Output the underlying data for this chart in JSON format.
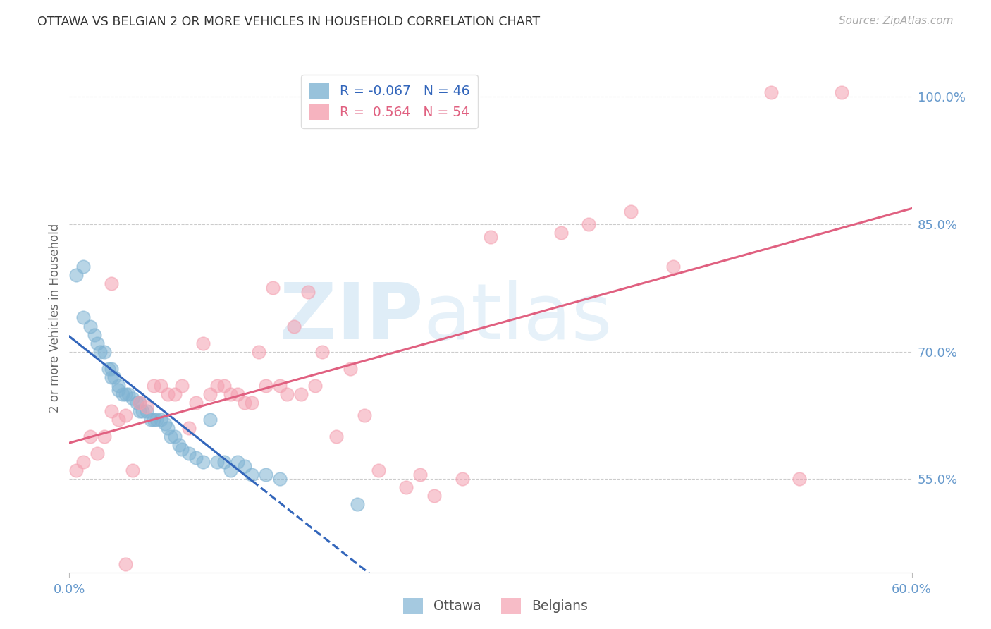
{
  "title": "OTTAWA VS BELGIAN 2 OR MORE VEHICLES IN HOUSEHOLD CORRELATION CHART",
  "source": "Source: ZipAtlas.com",
  "ylabel": "2 or more Vehicles in Household",
  "watermark": "ZIPatlas",
  "ottawa": {
    "color": "#7fb3d3",
    "line_color": "#3366bb",
    "R": -0.067,
    "N": 46,
    "x": [
      0.5,
      1.0,
      1.5,
      1.8,
      2.0,
      2.2,
      2.5,
      2.8,
      3.0,
      3.0,
      3.2,
      3.5,
      3.5,
      3.8,
      4.0,
      4.2,
      4.5,
      4.8,
      5.0,
      5.0,
      5.2,
      5.5,
      5.8,
      6.0,
      6.2,
      6.5,
      6.8,
      7.0,
      7.2,
      7.5,
      7.8,
      8.0,
      8.5,
      9.0,
      9.5,
      10.0,
      10.5,
      11.0,
      11.5,
      12.0,
      12.5,
      13.0,
      14.0,
      15.0,
      1.0,
      20.5
    ],
    "y": [
      79.0,
      74.0,
      73.0,
      72.0,
      71.0,
      70.0,
      70.0,
      68.0,
      68.0,
      67.0,
      67.0,
      66.0,
      65.5,
      65.0,
      65.0,
      65.0,
      64.5,
      64.0,
      64.0,
      63.0,
      63.0,
      63.0,
      62.0,
      62.0,
      62.0,
      62.0,
      61.5,
      61.0,
      60.0,
      60.0,
      59.0,
      58.5,
      58.0,
      57.5,
      57.0,
      62.0,
      57.0,
      57.0,
      56.0,
      57.0,
      56.5,
      55.5,
      55.5,
      55.0,
      80.0,
      52.0
    ]
  },
  "belgians": {
    "color": "#f4a0b0",
    "line_color": "#e06080",
    "R": 0.564,
    "N": 54,
    "x": [
      0.5,
      1.0,
      1.5,
      2.0,
      2.5,
      3.0,
      3.5,
      4.0,
      4.5,
      5.0,
      5.5,
      6.0,
      6.5,
      7.0,
      7.5,
      8.0,
      8.5,
      9.0,
      9.5,
      10.0,
      10.5,
      11.0,
      11.5,
      12.0,
      12.5,
      13.0,
      13.5,
      14.0,
      14.5,
      15.0,
      15.5,
      16.0,
      16.5,
      17.0,
      17.5,
      18.0,
      19.0,
      20.0,
      21.0,
      22.0,
      24.0,
      25.0,
      26.0,
      28.0,
      30.0,
      35.0,
      37.0,
      40.0,
      43.0,
      50.0,
      52.0,
      55.0,
      3.0,
      4.0
    ],
    "y": [
      56.0,
      57.0,
      60.0,
      58.0,
      60.0,
      63.0,
      62.0,
      62.5,
      56.0,
      64.0,
      63.5,
      66.0,
      66.0,
      65.0,
      65.0,
      66.0,
      61.0,
      64.0,
      71.0,
      65.0,
      66.0,
      66.0,
      65.0,
      65.0,
      64.0,
      64.0,
      70.0,
      66.0,
      77.5,
      66.0,
      65.0,
      73.0,
      65.0,
      77.0,
      66.0,
      70.0,
      60.0,
      68.0,
      62.5,
      56.0,
      54.0,
      55.5,
      53.0,
      55.0,
      83.5,
      84.0,
      85.0,
      86.5,
      80.0,
      100.5,
      55.0,
      100.5,
      78.0,
      45.0
    ]
  },
  "xmin": 0.0,
  "xmax": 60.0,
  "ymin": 44.0,
  "ymax": 104.0,
  "yticks": [
    55.0,
    70.0,
    85.0,
    100.0
  ],
  "bg_color": "#ffffff",
  "title_color": "#333333",
  "axis_color": "#6699cc",
  "grid_color": "#cccccc",
  "solid_x_end": 13.0
}
